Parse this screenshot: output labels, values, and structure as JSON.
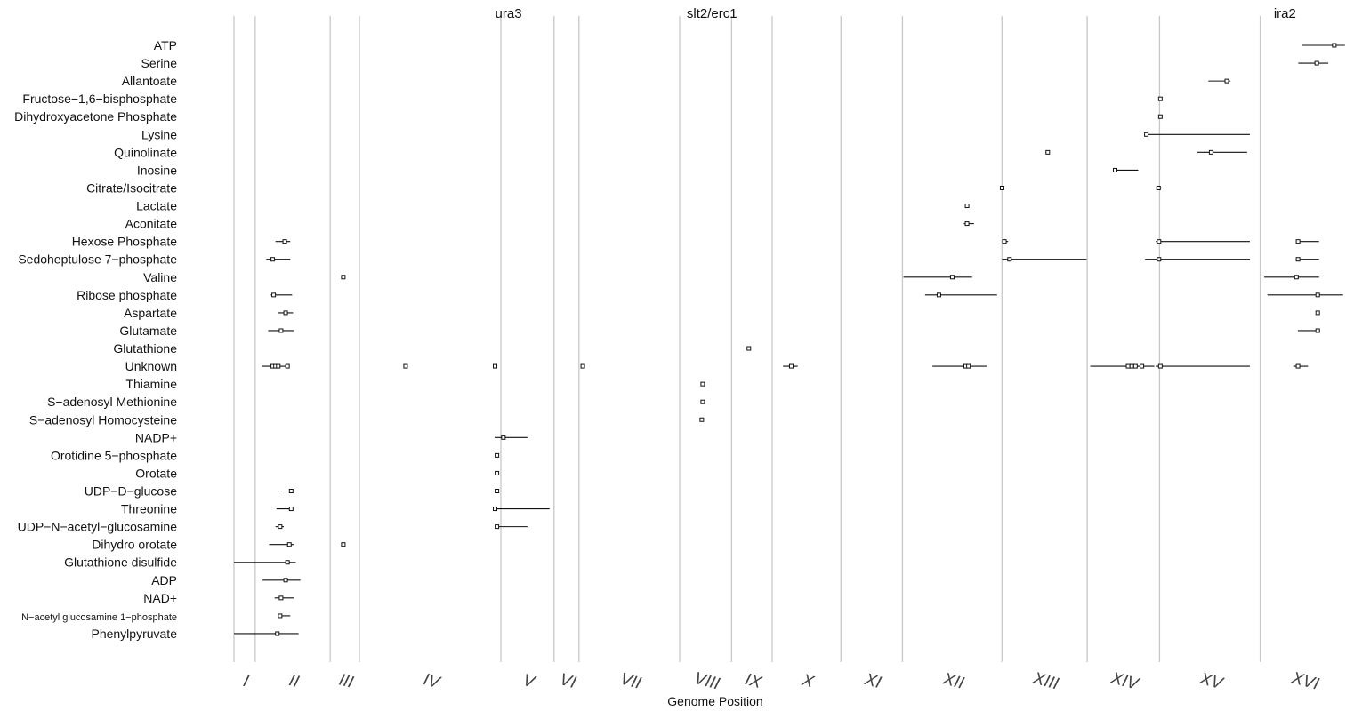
{
  "chart_data": {
    "type": "scatter",
    "xlabel": "Genome Position",
    "ylabel": "",
    "title": "",
    "chromosomes": [
      "I",
      "II",
      "III",
      "IV",
      "V",
      "VI",
      "VII",
      "VIII",
      "IX",
      "X",
      "XI",
      "XII",
      "XIII",
      "XIV",
      "XV",
      "XVI"
    ],
    "chromosome_boundaries_kb": [
      0,
      230,
      1043,
      1360,
      2892,
      3469,
      3739,
      4830,
      5393,
      5833,
      6578,
      7245,
      8323,
      9247,
      10031,
      11122,
      12071
    ],
    "xlim_kb": [
      0,
      12071
    ],
    "genes": [
      {
        "name": "ura3",
        "x_kb": 2975
      },
      {
        "name": "slt2/erc1",
        "x_kb": 5180
      },
      {
        "name": "ira2",
        "x_kb": 11390
      }
    ],
    "metabolites": [
      "ATP",
      "Serine",
      "Allantoate",
      "Fructose−1,6−bisphosphate",
      "Dihydroxyacetone Phosphate",
      "Lysine",
      "Quinolinate",
      "Inosine",
      "Citrate/Isocitrate",
      "Lactate",
      "Aconitate",
      "Hexose Phosphate",
      "Sedoheptulose 7−phosphate",
      "Valine",
      "Ribose phosphate",
      "Aspartate",
      "Glutamate",
      "Glutathione",
      "Unknown",
      "Thiamine",
      "S−adenosyl Methionine",
      "S−adenosyl Homocysteine",
      "NADP+",
      "Orotidine 5−phosphate",
      "Orotate",
      "UDP−D−glucose",
      "Threonine",
      "UDP−N−acetyl−glucosamine",
      "Dihydro orotate",
      "Glutathione disulfide",
      "ADP",
      "NAD+",
      "N−acetyl glucosamine 1−phosphate",
      "Phenylpyruvate"
    ],
    "qtls": [
      {
        "m": "ATP",
        "x": 11925,
        "lo": 11580,
        "hi": 12040
      },
      {
        "m": "Serine",
        "x": 11735,
        "lo": 11535,
        "hi": 11860
      },
      {
        "m": "Allantoate",
        "x": 10760,
        "lo": 10560,
        "hi": 10800
      },
      {
        "m": "Fructose−1,6−bisphosphate",
        "x": 10040,
        "lo": 10030,
        "hi": 10055
      },
      {
        "m": "Dihydroxyacetone Phosphate",
        "x": 10040,
        "lo": 10030,
        "hi": 10055
      },
      {
        "m": "Lysine",
        "x": 9888,
        "lo": 9875,
        "hi": 11010
      },
      {
        "m": "Quinolinate",
        "x": 8820,
        "lo": 8795,
        "hi": 8840
      },
      {
        "m": "Quinolinate",
        "x": 10590,
        "lo": 10440,
        "hi": 10980
      },
      {
        "m": "Inosine",
        "x": 9550,
        "lo": 9530,
        "hi": 9800
      },
      {
        "m": "Citrate/Isocitrate",
        "x": 8325,
        "lo": 8320,
        "hi": 8330
      },
      {
        "m": "Citrate/Isocitrate",
        "x": 10020,
        "lo": 9990,
        "hi": 10060
      },
      {
        "m": "Lactate",
        "x": 7945,
        "lo": 7935,
        "hi": 7950
      },
      {
        "m": "Aconitate",
        "x": 7945,
        "lo": 7910,
        "hi": 8020
      },
      {
        "m": "Hexose Phosphate",
        "x": 550,
        "lo": 450,
        "hi": 610
      },
      {
        "m": "Hexose Phosphate",
        "x": 8350,
        "lo": 8325,
        "hi": 8390
      },
      {
        "m": "Hexose Phosphate",
        "x": 10025,
        "lo": 9990,
        "hi": 11010
      },
      {
        "m": "Hexose Phosphate",
        "x": 11532,
        "lo": 11510,
        "hi": 11760
      },
      {
        "m": "Sedoheptulose 7−phosphate",
        "x": 420,
        "lo": 350,
        "hi": 610
      },
      {
        "m": "Sedoheptulose 7−phosphate",
        "x": 8405,
        "lo": 8325,
        "hi": 9240
      },
      {
        "m": "Sedoheptulose 7−phosphate",
        "x": 10025,
        "lo": 9875,
        "hi": 11010
      },
      {
        "m": "Sedoheptulose 7−phosphate",
        "x": 11532,
        "lo": 11510,
        "hi": 11760
      },
      {
        "m": "Valine",
        "x": 1185,
        "lo": 1180,
        "hi": 1190
      },
      {
        "m": "Valine",
        "x": 7785,
        "lo": 7255,
        "hi": 8000
      },
      {
        "m": "Valine",
        "x": 11515,
        "lo": 11165,
        "hi": 11760
      },
      {
        "m": "Ribose phosphate",
        "x": 430,
        "lo": 400,
        "hi": 630
      },
      {
        "m": "Ribose phosphate",
        "x": 7640,
        "lo": 7490,
        "hi": 8270
      },
      {
        "m": "Ribose phosphate",
        "x": 11745,
        "lo": 11200,
        "hi": 12020
      },
      {
        "m": "Aspartate",
        "x": 560,
        "lo": 480,
        "hi": 640
      },
      {
        "m": "Aspartate",
        "x": 11745,
        "lo": 11740,
        "hi": 11755
      },
      {
        "m": "Glutamate",
        "x": 510,
        "lo": 370,
        "hi": 650
      },
      {
        "m": "Glutamate",
        "x": 11745,
        "lo": 11530,
        "hi": 11770
      },
      {
        "m": "Glutathione",
        "x": 5580,
        "lo": 5560,
        "hi": 5600
      },
      {
        "m": "Unknown",
        "x": 420,
        "lo": 300,
        "hi": 570
      },
      {
        "m": "Unknown",
        "x": 450,
        "lo": 420,
        "hi": 480
      },
      {
        "m": "Unknown",
        "x": 480,
        "lo": 460,
        "hi": 500
      },
      {
        "m": "Unknown",
        "x": 580,
        "lo": 570,
        "hi": 590
      },
      {
        "m": "Unknown",
        "x": 1860,
        "lo": 1855,
        "hi": 1870
      },
      {
        "m": "Unknown",
        "x": 2830,
        "lo": 2825,
        "hi": 2840
      },
      {
        "m": "Unknown",
        "x": 3780,
        "lo": 3775,
        "hi": 3790
      },
      {
        "m": "Unknown",
        "x": 6040,
        "lo": 5950,
        "hi": 6110
      },
      {
        "m": "Unknown",
        "x": 7930,
        "lo": 7570,
        "hi": 8160
      },
      {
        "m": "Unknown",
        "x": 7960,
        "lo": 7940,
        "hi": 7980
      },
      {
        "m": "Unknown",
        "x": 9690,
        "lo": 9280,
        "hi": 9975
      },
      {
        "m": "Unknown",
        "x": 9730,
        "lo": 9710,
        "hi": 9750
      },
      {
        "m": "Unknown",
        "x": 9770,
        "lo": 9750,
        "hi": 9790
      },
      {
        "m": "Unknown",
        "x": 9840,
        "lo": 9830,
        "hi": 9850
      },
      {
        "m": "Unknown",
        "x": 10040,
        "lo": 9990,
        "hi": 11010
      },
      {
        "m": "Unknown",
        "x": 11532,
        "lo": 11480,
        "hi": 11640
      },
      {
        "m": "Thiamine",
        "x": 5080,
        "lo": 5075,
        "hi": 5085
      },
      {
        "m": "S−adenosyl Methionine",
        "x": 5080,
        "lo": 5075,
        "hi": 5085
      },
      {
        "m": "S−adenosyl Homocysteine",
        "x": 5070,
        "lo": 5065,
        "hi": 5075
      },
      {
        "m": "NADP+",
        "x": 2920,
        "lo": 2825,
        "hi": 3180
      },
      {
        "m": "Orotidine 5−phosphate",
        "x": 2850,
        "lo": 2845,
        "hi": 2855
      },
      {
        "m": "Orotate",
        "x": 2850,
        "lo": 2845,
        "hi": 2855
      },
      {
        "m": "UDP−D−glucose",
        "x": 620,
        "lo": 480,
        "hi": 640
      },
      {
        "m": "UDP−D−glucose",
        "x": 2850,
        "lo": 2845,
        "hi": 2855
      },
      {
        "m": "Threonine",
        "x": 620,
        "lo": 460,
        "hi": 640
      },
      {
        "m": "Threonine",
        "x": 2830,
        "lo": 2820,
        "hi": 3420
      },
      {
        "m": "UDP−N−acetyl−glucosamine",
        "x": 500,
        "lo": 450,
        "hi": 540
      },
      {
        "m": "UDP−N−acetyl−glucosamine",
        "x": 2850,
        "lo": 2830,
        "hi": 3180
      },
      {
        "m": "Dihydro orotate",
        "x": 600,
        "lo": 380,
        "hi": 650
      },
      {
        "m": "Dihydro orotate",
        "x": 1185,
        "lo": 1180,
        "hi": 1190
      },
      {
        "m": "Glutathione disulfide",
        "x": 580,
        "lo": 0,
        "hi": 670
      },
      {
        "m": "ADP",
        "x": 560,
        "lo": 310,
        "hi": 720
      },
      {
        "m": "NAD+",
        "x": 510,
        "lo": 440,
        "hi": 650
      },
      {
        "m": "N−acetyl glucosamine 1−phosphate",
        "x": 500,
        "lo": 490,
        "hi": 610
      },
      {
        "m": "Phenylpyruvate",
        "x": 470,
        "lo": 0,
        "hi": 700
      }
    ]
  }
}
